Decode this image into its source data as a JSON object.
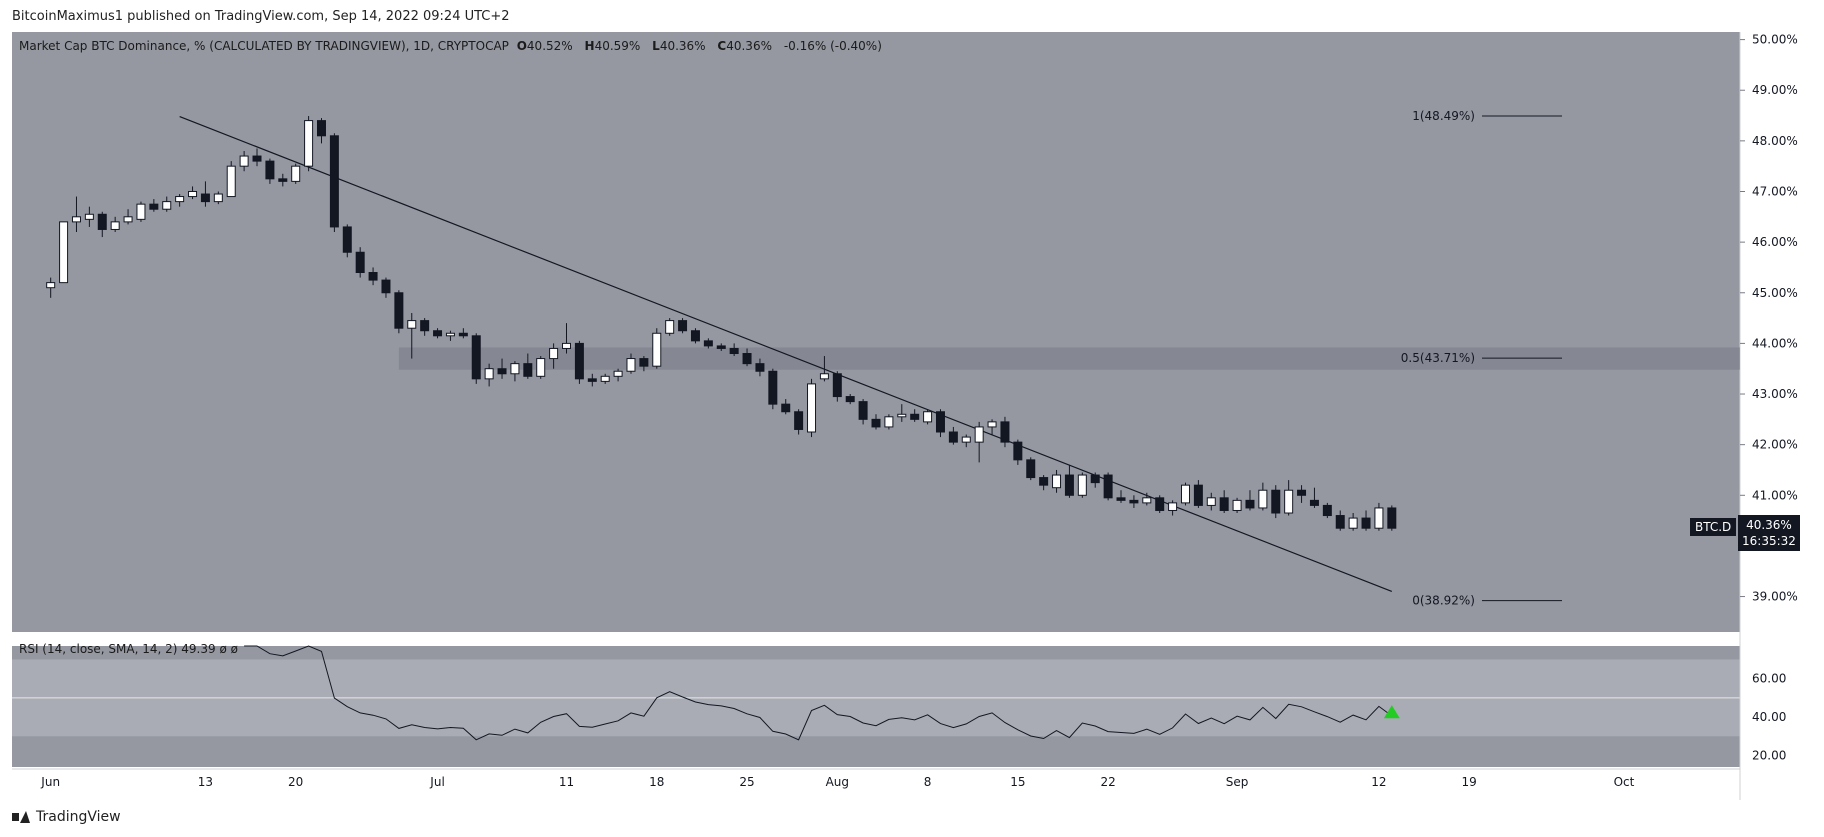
{
  "header": {
    "published_by": "BitcoinMaximus1 published on TradingView.com, Sep 14, 2022 09:24 UTC+2"
  },
  "legend": {
    "title": "Market Cap BTC Dominance, % (CALCULATED BY TRADINGVIEW), 1D, CRYPTOCAP",
    "o_label": "O",
    "o_val": "40.52%",
    "h_label": "H",
    "h_val": "40.59%",
    "l_label": "L",
    "l_val": "40.36%",
    "c_label": "C",
    "c_val": "40.36%",
    "change": "-0.16% (-0.40%)"
  },
  "rsi_legend": {
    "title": "RSI (14, close, SMA, 14, 2)",
    "value": "49.39",
    "extra": "ø ø"
  },
  "symbol_label": "BTC.D",
  "price_tag": {
    "value": "40.36%",
    "countdown": "16:35:32"
  },
  "footer": {
    "brand": "TradingView"
  },
  "colors": {
    "panel_bg": "#9598a1",
    "up_body": "#ffffff",
    "down_body": "#131722",
    "wick": "#131722",
    "rsi_band": "#a9acb4",
    "arrow": "#22cc22"
  },
  "chart_data": {
    "type": "candlestick",
    "price_axis_ticks": [
      "50.00%",
      "49.00%",
      "48.00%",
      "47.00%",
      "46.00%",
      "45.00%",
      "44.00%",
      "43.00%",
      "42.00%",
      "41.00%",
      "40.00%",
      "39.00%"
    ],
    "price_range": [
      38.3,
      50.15
    ],
    "time_axis_ticks": [
      "Jun",
      "13",
      "20",
      "Jul",
      "11",
      "18",
      "25",
      "Aug",
      "8",
      "15",
      "22",
      "Sep",
      "12",
      "19",
      "Oct"
    ],
    "fib_levels": [
      {
        "label": "1(48.49%)",
        "value": 48.49
      },
      {
        "label": "0.5(43.71%)",
        "value": 43.71
      },
      {
        "label": "0(38.92%)",
        "value": 38.92
      }
    ],
    "resistance_zone": [
      43.48,
      43.92
    ],
    "trendline": [
      {
        "x": "2022-06-11",
        "y": 48.48
      },
      {
        "x": "2022-09-13",
        "y": 39.1
      }
    ],
    "candles": [
      {
        "d": "2022-06-01",
        "o": 45.1,
        "h": 45.3,
        "l": 44.9,
        "c": 45.2
      },
      {
        "d": "2022-06-02",
        "o": 45.2,
        "h": 46.4,
        "l": 45.2,
        "c": 46.4
      },
      {
        "d": "2022-06-03",
        "o": 46.4,
        "h": 46.9,
        "l": 46.2,
        "c": 46.5
      },
      {
        "d": "2022-06-04",
        "o": 46.45,
        "h": 46.7,
        "l": 46.3,
        "c": 46.55
      },
      {
        "d": "2022-06-05",
        "o": 46.55,
        "h": 46.6,
        "l": 46.1,
        "c": 46.25
      },
      {
        "d": "2022-06-06",
        "o": 46.25,
        "h": 46.5,
        "l": 46.2,
        "c": 46.4
      },
      {
        "d": "2022-06-07",
        "o": 46.4,
        "h": 46.65,
        "l": 46.35,
        "c": 46.5
      },
      {
        "d": "2022-06-08",
        "o": 46.45,
        "h": 46.8,
        "l": 46.4,
        "c": 46.75
      },
      {
        "d": "2022-06-09",
        "o": 46.75,
        "h": 46.85,
        "l": 46.6,
        "c": 46.65
      },
      {
        "d": "2022-06-10",
        "o": 46.65,
        "h": 46.9,
        "l": 46.6,
        "c": 46.8
      },
      {
        "d": "2022-06-11",
        "o": 46.8,
        "h": 46.95,
        "l": 46.7,
        "c": 46.9
      },
      {
        "d": "2022-06-12",
        "o": 46.9,
        "h": 47.1,
        "l": 46.85,
        "c": 47.0
      },
      {
        "d": "2022-06-13",
        "o": 46.95,
        "h": 47.2,
        "l": 46.7,
        "c": 46.8
      },
      {
        "d": "2022-06-14",
        "o": 46.8,
        "h": 47.0,
        "l": 46.75,
        "c": 46.95
      },
      {
        "d": "2022-06-15",
        "o": 46.9,
        "h": 47.6,
        "l": 46.9,
        "c": 47.5
      },
      {
        "d": "2022-06-16",
        "o": 47.5,
        "h": 47.8,
        "l": 47.4,
        "c": 47.7
      },
      {
        "d": "2022-06-17",
        "o": 47.7,
        "h": 47.85,
        "l": 47.5,
        "c": 47.6
      },
      {
        "d": "2022-06-18",
        "o": 47.6,
        "h": 47.65,
        "l": 47.15,
        "c": 47.25
      },
      {
        "d": "2022-06-19",
        "o": 47.25,
        "h": 47.35,
        "l": 47.1,
        "c": 47.2
      },
      {
        "d": "2022-06-20",
        "o": 47.2,
        "h": 47.55,
        "l": 47.15,
        "c": 47.5
      },
      {
        "d": "2022-06-21",
        "o": 47.5,
        "h": 48.49,
        "l": 47.4,
        "c": 48.4
      },
      {
        "d": "2022-06-22",
        "o": 48.4,
        "h": 48.45,
        "l": 47.95,
        "c": 48.1
      },
      {
        "d": "2022-06-23",
        "o": 48.1,
        "h": 48.15,
        "l": 46.2,
        "c": 46.3
      },
      {
        "d": "2022-06-24",
        "o": 46.3,
        "h": 46.35,
        "l": 45.7,
        "c": 45.8
      },
      {
        "d": "2022-06-25",
        "o": 45.8,
        "h": 45.9,
        "l": 45.3,
        "c": 45.4
      },
      {
        "d": "2022-06-26",
        "o": 45.4,
        "h": 45.5,
        "l": 45.15,
        "c": 45.25
      },
      {
        "d": "2022-06-27",
        "o": 45.25,
        "h": 45.3,
        "l": 44.9,
        "c": 45.0
      },
      {
        "d": "2022-06-28",
        "o": 45.0,
        "h": 45.05,
        "l": 44.2,
        "c": 44.3
      },
      {
        "d": "2022-06-29",
        "o": 44.3,
        "h": 44.6,
        "l": 43.7,
        "c": 44.45
      },
      {
        "d": "2022-06-30",
        "o": 44.45,
        "h": 44.5,
        "l": 44.15,
        "c": 44.25
      },
      {
        "d": "2022-07-01",
        "o": 44.25,
        "h": 44.3,
        "l": 44.1,
        "c": 44.15
      },
      {
        "d": "2022-07-02",
        "o": 44.15,
        "h": 44.25,
        "l": 44.05,
        "c": 44.2
      },
      {
        "d": "2022-07-03",
        "o": 44.2,
        "h": 44.3,
        "l": 44.1,
        "c": 44.15
      },
      {
        "d": "2022-07-04",
        "o": 44.15,
        "h": 44.2,
        "l": 43.2,
        "c": 43.3
      },
      {
        "d": "2022-07-05",
        "o": 43.3,
        "h": 43.6,
        "l": 43.15,
        "c": 43.5
      },
      {
        "d": "2022-07-06",
        "o": 43.5,
        "h": 43.7,
        "l": 43.3,
        "c": 43.4
      },
      {
        "d": "2022-07-07",
        "o": 43.4,
        "h": 43.65,
        "l": 43.25,
        "c": 43.6
      },
      {
        "d": "2022-07-08",
        "o": 43.6,
        "h": 43.8,
        "l": 43.3,
        "c": 43.35
      },
      {
        "d": "2022-07-09",
        "o": 43.35,
        "h": 43.75,
        "l": 43.3,
        "c": 43.7
      },
      {
        "d": "2022-07-10",
        "o": 43.7,
        "h": 44.0,
        "l": 43.5,
        "c": 43.9
      },
      {
        "d": "2022-07-11",
        "o": 43.9,
        "h": 44.4,
        "l": 43.8,
        "c": 44.0
      },
      {
        "d": "2022-07-12",
        "o": 44.0,
        "h": 44.05,
        "l": 43.2,
        "c": 43.3
      },
      {
        "d": "2022-07-13",
        "o": 43.3,
        "h": 43.4,
        "l": 43.15,
        "c": 43.25
      },
      {
        "d": "2022-07-14",
        "o": 43.25,
        "h": 43.4,
        "l": 43.2,
        "c": 43.35
      },
      {
        "d": "2022-07-15",
        "o": 43.35,
        "h": 43.5,
        "l": 43.25,
        "c": 43.45
      },
      {
        "d": "2022-07-16",
        "o": 43.45,
        "h": 43.8,
        "l": 43.4,
        "c": 43.7
      },
      {
        "d": "2022-07-17",
        "o": 43.7,
        "h": 43.75,
        "l": 43.45,
        "c": 43.55
      },
      {
        "d": "2022-07-18",
        "o": 43.55,
        "h": 44.3,
        "l": 43.5,
        "c": 44.2
      },
      {
        "d": "2022-07-19",
        "o": 44.2,
        "h": 44.5,
        "l": 44.15,
        "c": 44.45
      },
      {
        "d": "2022-07-20",
        "o": 44.45,
        "h": 44.5,
        "l": 44.2,
        "c": 44.25
      },
      {
        "d": "2022-07-21",
        "o": 44.25,
        "h": 44.3,
        "l": 44.0,
        "c": 44.05
      },
      {
        "d": "2022-07-22",
        "o": 44.05,
        "h": 44.1,
        "l": 43.9,
        "c": 43.95
      },
      {
        "d": "2022-07-23",
        "o": 43.95,
        "h": 44.0,
        "l": 43.85,
        "c": 43.9
      },
      {
        "d": "2022-07-24",
        "o": 43.9,
        "h": 44.0,
        "l": 43.75,
        "c": 43.8
      },
      {
        "d": "2022-07-25",
        "o": 43.8,
        "h": 43.9,
        "l": 43.55,
        "c": 43.6
      },
      {
        "d": "2022-07-26",
        "o": 43.6,
        "h": 43.7,
        "l": 43.35,
        "c": 43.45
      },
      {
        "d": "2022-07-27",
        "o": 43.45,
        "h": 43.5,
        "l": 42.7,
        "c": 42.8
      },
      {
        "d": "2022-07-28",
        "o": 42.8,
        "h": 42.9,
        "l": 42.6,
        "c": 42.65
      },
      {
        "d": "2022-07-29",
        "o": 42.65,
        "h": 42.7,
        "l": 42.2,
        "c": 42.3
      },
      {
        "d": "2022-07-30",
        "o": 42.25,
        "h": 43.3,
        "l": 42.15,
        "c": 43.2
      },
      {
        "d": "2022-07-31",
        "o": 43.3,
        "h": 43.75,
        "l": 43.25,
        "c": 43.4
      },
      {
        "d": "2022-08-01",
        "o": 43.4,
        "h": 43.45,
        "l": 42.85,
        "c": 42.95
      },
      {
        "d": "2022-08-02",
        "o": 42.95,
        "h": 43.0,
        "l": 42.8,
        "c": 42.85
      },
      {
        "d": "2022-08-03",
        "o": 42.85,
        "h": 42.9,
        "l": 42.4,
        "c": 42.5
      },
      {
        "d": "2022-08-04",
        "o": 42.5,
        "h": 42.6,
        "l": 42.3,
        "c": 42.35
      },
      {
        "d": "2022-08-05",
        "o": 42.35,
        "h": 42.6,
        "l": 42.3,
        "c": 42.55
      },
      {
        "d": "2022-08-06",
        "o": 42.55,
        "h": 42.8,
        "l": 42.45,
        "c": 42.6
      },
      {
        "d": "2022-08-07",
        "o": 42.6,
        "h": 42.7,
        "l": 42.45,
        "c": 42.5
      },
      {
        "d": "2022-08-08",
        "o": 42.45,
        "h": 42.7,
        "l": 42.4,
        "c": 42.65
      },
      {
        "d": "2022-08-09",
        "o": 42.65,
        "h": 42.7,
        "l": 42.15,
        "c": 42.25
      },
      {
        "d": "2022-08-10",
        "o": 42.25,
        "h": 42.35,
        "l": 42.0,
        "c": 42.05
      },
      {
        "d": "2022-08-11",
        "o": 42.05,
        "h": 42.2,
        "l": 41.95,
        "c": 42.15
      },
      {
        "d": "2022-08-12",
        "o": 42.05,
        "h": 42.45,
        "l": 41.65,
        "c": 42.35
      },
      {
        "d": "2022-08-13",
        "o": 42.35,
        "h": 42.5,
        "l": 42.2,
        "c": 42.45
      },
      {
        "d": "2022-08-14",
        "o": 42.45,
        "h": 42.55,
        "l": 41.95,
        "c": 42.05
      },
      {
        "d": "2022-08-15",
        "o": 42.05,
        "h": 42.1,
        "l": 41.6,
        "c": 41.7
      },
      {
        "d": "2022-08-16",
        "o": 41.7,
        "h": 41.75,
        "l": 41.3,
        "c": 41.35
      },
      {
        "d": "2022-08-17",
        "o": 41.35,
        "h": 41.4,
        "l": 41.1,
        "c": 41.2
      },
      {
        "d": "2022-08-18",
        "o": 41.15,
        "h": 41.5,
        "l": 41.05,
        "c": 41.4
      },
      {
        "d": "2022-08-19",
        "o": 41.4,
        "h": 41.6,
        "l": 40.95,
        "c": 41.0
      },
      {
        "d": "2022-08-20",
        "o": 41.0,
        "h": 41.45,
        "l": 40.95,
        "c": 41.4
      },
      {
        "d": "2022-08-21",
        "o": 41.4,
        "h": 41.45,
        "l": 41.15,
        "c": 41.25
      },
      {
        "d": "2022-08-22",
        "o": 41.4,
        "h": 41.45,
        "l": 40.9,
        "c": 40.95
      },
      {
        "d": "2022-08-23",
        "o": 40.95,
        "h": 41.1,
        "l": 40.85,
        "c": 40.9
      },
      {
        "d": "2022-08-24",
        "o": 40.9,
        "h": 41.0,
        "l": 40.75,
        "c": 40.85
      },
      {
        "d": "2022-08-25",
        "o": 40.85,
        "h": 41.05,
        "l": 40.8,
        "c": 40.95
      },
      {
        "d": "2022-08-26",
        "o": 40.95,
        "h": 41.0,
        "l": 40.65,
        "c": 40.7
      },
      {
        "d": "2022-08-27",
        "o": 40.7,
        "h": 40.9,
        "l": 40.6,
        "c": 40.85
      },
      {
        "d": "2022-08-28",
        "o": 40.85,
        "h": 41.25,
        "l": 40.8,
        "c": 41.2
      },
      {
        "d": "2022-08-29",
        "o": 41.2,
        "h": 41.3,
        "l": 40.75,
        "c": 40.8
      },
      {
        "d": "2022-08-30",
        "o": 40.8,
        "h": 41.05,
        "l": 40.7,
        "c": 40.95
      },
      {
        "d": "2022-08-31",
        "o": 40.95,
        "h": 41.1,
        "l": 40.65,
        "c": 40.7
      },
      {
        "d": "2022-09-01",
        "o": 40.7,
        "h": 40.95,
        "l": 40.65,
        "c": 40.9
      },
      {
        "d": "2022-09-02",
        "o": 40.9,
        "h": 41.1,
        "l": 40.7,
        "c": 40.75
      },
      {
        "d": "2022-09-03",
        "o": 40.75,
        "h": 41.25,
        "l": 40.7,
        "c": 41.1
      },
      {
        "d": "2022-09-04",
        "o": 41.1,
        "h": 41.2,
        "l": 40.55,
        "c": 40.65
      },
      {
        "d": "2022-09-05",
        "o": 40.65,
        "h": 41.3,
        "l": 40.6,
        "c": 41.1
      },
      {
        "d": "2022-09-06",
        "o": 41.1,
        "h": 41.2,
        "l": 40.85,
        "c": 41.0
      },
      {
        "d": "2022-09-07",
        "o": 40.9,
        "h": 41.15,
        "l": 40.75,
        "c": 40.8
      },
      {
        "d": "2022-09-08",
        "o": 40.8,
        "h": 40.85,
        "l": 40.55,
        "c": 40.6
      },
      {
        "d": "2022-09-09",
        "o": 40.6,
        "h": 40.7,
        "l": 40.3,
        "c": 40.35
      },
      {
        "d": "2022-09-10",
        "o": 40.35,
        "h": 40.65,
        "l": 40.3,
        "c": 40.55
      },
      {
        "d": "2022-09-11",
        "o": 40.55,
        "h": 40.7,
        "l": 40.3,
        "c": 40.35
      },
      {
        "d": "2022-09-12",
        "o": 40.35,
        "h": 40.85,
        "l": 40.3,
        "c": 40.75
      },
      {
        "d": "2022-09-13",
        "o": 40.75,
        "h": 40.8,
        "l": 40.3,
        "c": 40.35
      }
    ]
  },
  "rsi": {
    "ticks": [
      "60.00",
      "40.00",
      "20.00"
    ],
    "band": [
      30,
      70
    ],
    "range": [
      14,
      77
    ],
    "midline": 50,
    "arrow_value": 43
  }
}
